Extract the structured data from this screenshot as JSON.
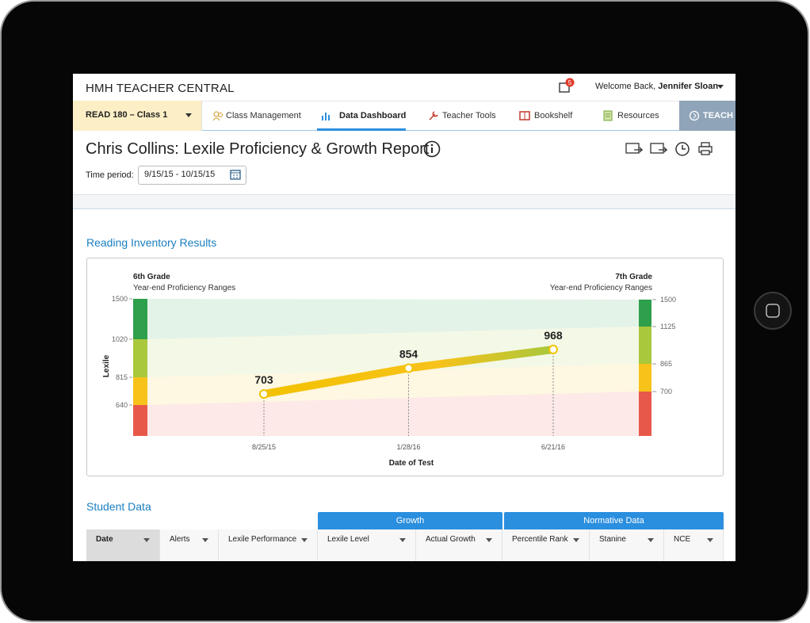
{
  "header": {
    "brand": "HMH TEACHER CENTRAL",
    "notifications": 5,
    "welcome": "Welcome Back,",
    "user": "Jennifer Sloan"
  },
  "nav": {
    "class_selector": "READ 180 – Class 1",
    "tabs": [
      "Class Management",
      "Data Dashboard",
      "Teacher Tools",
      "Bookshelf",
      "Resources",
      "TEACH"
    ]
  },
  "report": {
    "title": "Chris Collins: Lexile Proficiency & Growth Report",
    "time_period_label": "Time period:",
    "time_period": "9/15/15 - 10/15/15",
    "section": "Reading Inventory Results"
  },
  "chart_data": {
    "type": "line",
    "left_title": "6th Grade",
    "left_subtitle": "Year-end Proficiency Ranges",
    "right_title": "7th Grade",
    "right_subtitle": "Year-end Proficiency Ranges",
    "ylabel": "Lexile",
    "xlabel": "Date of Test",
    "categories": [
      "8/25/15",
      "1/28/16",
      "6/21/16"
    ],
    "values": [
      703,
      854,
      968
    ],
    "yticks": [
      640,
      815,
      1020,
      1500
    ],
    "y2ticks": [
      700,
      865,
      1125,
      1500
    ],
    "band_colors": [
      "#e8584a",
      "#f7c21a",
      "#a9c83c",
      "#2e9f4b"
    ],
    "line_color": "#f2c200"
  },
  "student_data": {
    "title": "Student Data",
    "groups": [
      "Growth",
      "Normative Data"
    ],
    "columns": [
      "Date",
      "Alerts",
      "Lexile Performance",
      "Lexile Level",
      "Actual Growth",
      "Percentile Rank",
      "Stanine",
      "NCE"
    ]
  }
}
